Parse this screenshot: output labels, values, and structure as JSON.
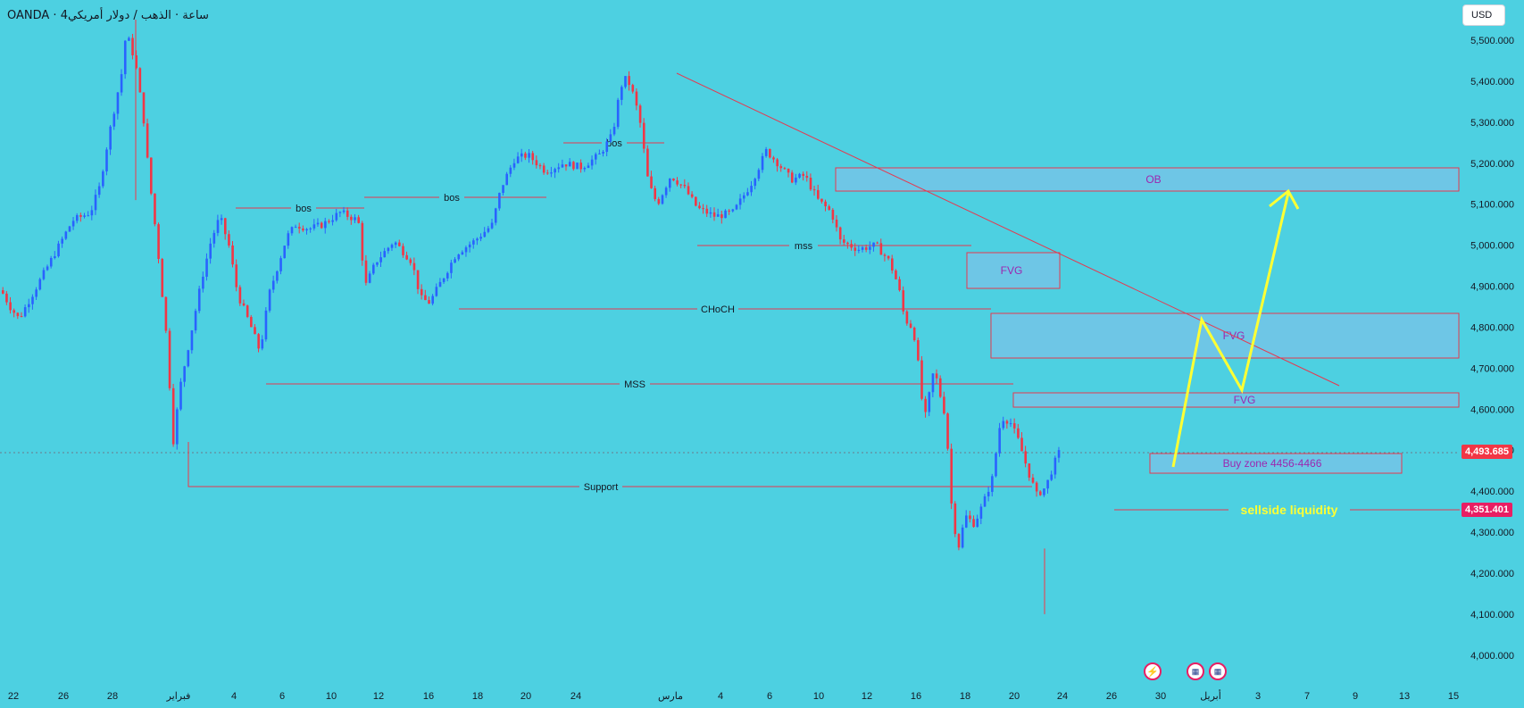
{
  "symbol": "OANDA · 4ساعة · الذهب / دولار أمريكي",
  "currency_button": "USD",
  "colors": {
    "background": "#4dd0e1",
    "up": "#2962ff",
    "down": "#f23645",
    "annotation": "#e53950",
    "zone_fill": "#6ec6e6",
    "arrow": "#ffff33",
    "zone_text": "#9c27b0"
  },
  "price_tags": {
    "current": "4,493.685",
    "liquidity": "4,351.401"
  },
  "chart_data": {
    "type": "candlestick",
    "title": "",
    "xlabel": "",
    "ylabel": "",
    "ylim": [
      3955,
      5545
    ],
    "y_ticks": [
      4000,
      4100,
      4200,
      4300,
      4400,
      4500,
      4600,
      4700,
      4800,
      4900,
      5000,
      5100,
      5200,
      5300,
      5400,
      5500
    ],
    "y_tick_labels": [
      "4,000.000",
      "4,100.000",
      "4,200.000",
      "4,300.000",
      "4,400.000",
      "4,500.000",
      "4,600.000",
      "4,700.000",
      "4,800.000",
      "4,900.000",
      "5,000.000",
      "5,100.000",
      "5,200.000",
      "5,300.000",
      "5,400.000",
      "5,500.000"
    ],
    "x_tick_labels": [
      "22",
      "26",
      "28",
      "فبراير",
      "4",
      "6",
      "10",
      "12",
      "16",
      "18",
      "20",
      "24",
      "مارس",
      "4",
      "6",
      "10",
      "12",
      "16",
      "18",
      "20",
      "24",
      "26",
      "30",
      "أبريل",
      "3",
      "7",
      "9",
      "13",
      "15"
    ],
    "current_price": 4493.685,
    "price_path": [
      [
        0,
        4890
      ],
      [
        10,
        4850
      ],
      [
        20,
        4820
      ],
      [
        40,
        4900
      ],
      [
        60,
        4980
      ],
      [
        80,
        5060
      ],
      [
        100,
        5080
      ],
      [
        110,
        5140
      ],
      [
        120,
        5260
      ],
      [
        135,
        5420
      ],
      [
        140,
        5520
      ],
      [
        150,
        5450
      ],
      [
        160,
        5300
      ],
      [
        165,
        5180
      ],
      [
        175,
        5000
      ],
      [
        185,
        4780
      ],
      [
        193,
        4520
      ],
      [
        200,
        4650
      ],
      [
        215,
        4810
      ],
      [
        225,
        4920
      ],
      [
        235,
        5010
      ],
      [
        245,
        5070
      ],
      [
        255,
        5000
      ],
      [
        265,
        4880
      ],
      [
        280,
        4800
      ],
      [
        290,
        4740
      ],
      [
        300,
        4880
      ],
      [
        310,
        4950
      ],
      [
        320,
        5020
      ],
      [
        330,
        5050
      ],
      [
        345,
        5040
      ],
      [
        360,
        5050
      ],
      [
        380,
        5080
      ],
      [
        400,
        5060
      ],
      [
        408,
        4900
      ],
      [
        420,
        4960
      ],
      [
        440,
        5010
      ],
      [
        460,
        4960
      ],
      [
        470,
        4870
      ],
      [
        480,
        4860
      ],
      [
        495,
        4920
      ],
      [
        510,
        4980
      ],
      [
        530,
        5010
      ],
      [
        550,
        5050
      ],
      [
        560,
        5140
      ],
      [
        575,
        5210
      ],
      [
        590,
        5220
      ],
      [
        610,
        5180
      ],
      [
        630,
        5200
      ],
      [
        650,
        5190
      ],
      [
        670,
        5220
      ],
      [
        685,
        5270
      ],
      [
        690,
        5340
      ],
      [
        697,
        5410
      ],
      [
        705,
        5390
      ],
      [
        715,
        5310
      ],
      [
        725,
        5150
      ],
      [
        735,
        5100
      ],
      [
        750,
        5170
      ],
      [
        765,
        5140
      ],
      [
        780,
        5090
      ],
      [
        800,
        5070
      ],
      [
        820,
        5080
      ],
      [
        840,
        5150
      ],
      [
        857,
        5230
      ],
      [
        870,
        5200
      ],
      [
        885,
        5160
      ],
      [
        900,
        5170
      ],
      [
        915,
        5110
      ],
      [
        930,
        5080
      ],
      [
        940,
        5010
      ],
      [
        960,
        4990
      ],
      [
        980,
        5000
      ],
      [
        995,
        4960
      ],
      [
        1005,
        4900
      ],
      [
        1012,
        4820
      ],
      [
        1020,
        4800
      ],
      [
        1025,
        4760
      ],
      [
        1030,
        4640
      ],
      [
        1035,
        4580
      ],
      [
        1045,
        4700
      ],
      [
        1050,
        4650
      ],
      [
        1058,
        4580
      ],
      [
        1065,
        4350
      ],
      [
        1072,
        4260
      ],
      [
        1080,
        4340
      ],
      [
        1090,
        4320
      ],
      [
        1100,
        4370
      ],
      [
        1110,
        4430
      ],
      [
        1120,
        4580
      ],
      [
        1130,
        4570
      ],
      [
        1140,
        4520
      ],
      [
        1150,
        4450
      ],
      [
        1160,
        4390
      ],
      [
        1170,
        4410
      ],
      [
        1180,
        4470
      ],
      [
        1185,
        4494
      ]
    ]
  },
  "annotations": {
    "lines": [
      {
        "label": "bos",
        "price": 5096
      },
      {
        "label": "bos",
        "price": 5112
      },
      {
        "label": "bos",
        "price": 5248
      },
      {
        "label": "mss",
        "price": 4998
      },
      {
        "label": "CHoCH",
        "price": 4841
      },
      {
        "label": "MSS",
        "price": 4653
      },
      {
        "label": "Support",
        "price": 4408
      },
      {
        "label": "sellside liquidity",
        "price": 4351
      }
    ],
    "zones": [
      {
        "label": "OB",
        "price_top": 5186,
        "price_bottom": 5127
      },
      {
        "label": "FVG",
        "price_top": 4978,
        "price_bottom": 4892
      },
      {
        "label": "FVG",
        "price_top": 4832,
        "price_bottom": 4720
      },
      {
        "label": "FVG",
        "price_top": 4636,
        "price_bottom": 4599
      },
      {
        "label": "Buy zone 4456-4466",
        "price_top": 4490,
        "price_bottom": 4440
      }
    ],
    "trendline": {
      "from_price": 5420,
      "to_price": 4650
    },
    "projection_prices": [
      4460,
      4810,
      4640,
      5125
    ]
  }
}
